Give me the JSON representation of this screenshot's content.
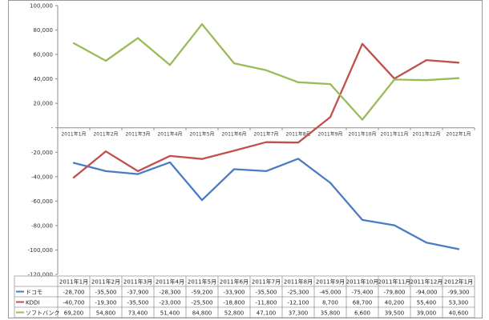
{
  "chart_data": {
    "type": "line",
    "categories": [
      "2011年1月",
      "2011年2月",
      "2011年3月",
      "2011年4月",
      "2011年5月",
      "2011年6月",
      "2011年7月",
      "2011年8月",
      "2011年9月",
      "2011年10月",
      "2011年11月",
      "2011年12月",
      "2012年1月"
    ],
    "ylim": [
      -120000,
      100000
    ],
    "yticks": [
      100000,
      80000,
      60000,
      40000,
      20000,
      0,
      -20000,
      -40000,
      -60000,
      -80000,
      -100000,
      -120000
    ],
    "ytick_labels": [
      "100,000",
      "80,000",
      "60,000",
      "40,000",
      "20,000",
      "-",
      "-20,000",
      "-40,000",
      "-60,000",
      "-80,000",
      "-100,000",
      "-120,000"
    ],
    "grid": false,
    "legend": "data-table",
    "series": [
      {
        "name": "ドコモ",
        "color": "#4a7cc4",
        "values": [
          -28700,
          -35500,
          -37900,
          -28300,
          -59200,
          -33900,
          -35500,
          -25300,
          -45000,
          -75400,
          -79800,
          -94000,
          -99300
        ],
        "labels": [
          "-28,700",
          "-35,500",
          "-37,900",
          "-28,300",
          "-59,200",
          "-33,900",
          "-35,500",
          "-25,300",
          "-45,000",
          "-75,400",
          "-79,800",
          "-94,000",
          "-99,300"
        ]
      },
      {
        "name": "KDDI",
        "color": "#c0504d",
        "values": [
          -40700,
          -19300,
          -35500,
          -23000,
          -25500,
          -18800,
          -11800,
          -12100,
          8700,
          68700,
          40200,
          55400,
          53300
        ],
        "labels": [
          "-40,700",
          "-19,300",
          "-35,500",
          "-23,000",
          "-25,500",
          "-18,800",
          "-11,800",
          "-12,100",
          "8,700",
          "68,700",
          "40,200",
          "55,400",
          "53,300"
        ]
      },
      {
        "name": "ソフトバンク",
        "color": "#9bbb59",
        "values": [
          69200,
          54800,
          73400,
          51400,
          84800,
          52800,
          47100,
          37300,
          35800,
          6600,
          39500,
          39000,
          40600
        ],
        "labels": [
          "69,200",
          "54,800",
          "73,400",
          "51,400",
          "84,800",
          "52,800",
          "47,100",
          "37,300",
          "35,800",
          "6,600",
          "39,500",
          "39,000",
          "40,600"
        ]
      }
    ]
  }
}
